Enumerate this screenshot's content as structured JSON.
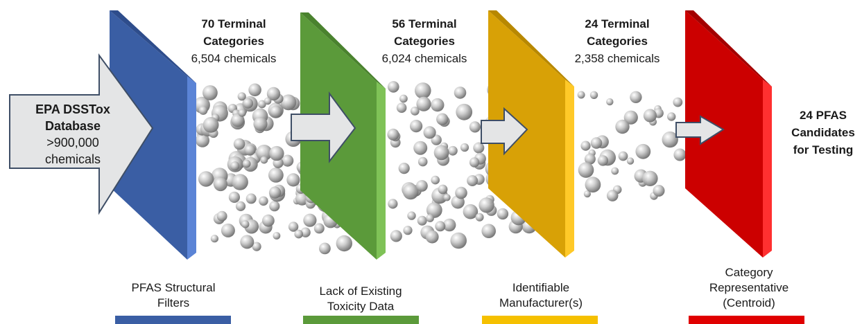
{
  "source": {
    "title": "EPA DSSTox",
    "subtitle": "Database",
    "count": ">900,000",
    "unit": "chemicals"
  },
  "stages": [
    {
      "heading1": "70 Terminal",
      "heading2": "Categories",
      "count": "6,504 chemicals"
    },
    {
      "heading1": "56 Terminal",
      "heading2": "Categories",
      "count": "6,024 chemicals"
    },
    {
      "heading1": "24 Terminal",
      "heading2": "Categories",
      "count": "2,358 chemicals"
    }
  ],
  "result": {
    "line1": "24 PFAS",
    "line2": "Candidates",
    "line3": "for Testing"
  },
  "filters": [
    {
      "lines": [
        "PFAS Structural",
        "Filters"
      ],
      "color": "#3a5ea4"
    },
    {
      "lines": [
        "Lack of Existing",
        "Toxicity Data"
      ],
      "color": "#5b9a3a"
    },
    {
      "lines": [
        "Identifiable",
        "Manufacturer(s)"
      ],
      "color": "#f5c000"
    },
    {
      "lines": [
        "Category",
        "Representative",
        "(Centroid)"
      ],
      "color": "#e00000"
    }
  ],
  "colors": {
    "blue_front": "#3a5ea4",
    "blue_side": "#5b84d6",
    "green_front": "#5b9a3a",
    "green_side": "#7fc257",
    "gold_front": "#d8a106",
    "gold_side": "#ffc928",
    "red_front": "#cc0000",
    "red_side": "#ff3030",
    "arrow_fill": "#e4e5e6",
    "arrow_stroke": "#3e4e66"
  }
}
